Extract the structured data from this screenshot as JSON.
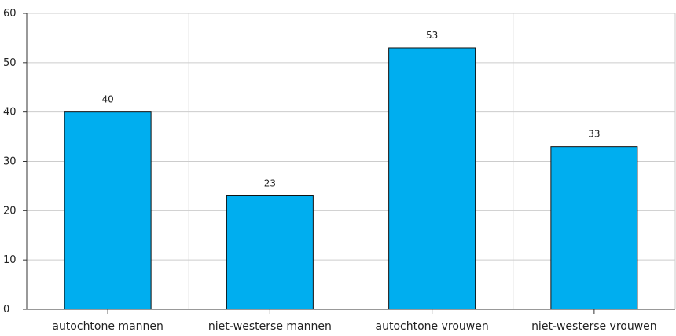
{
  "chart_data": {
    "type": "bar",
    "categories": [
      "autochtone mannen",
      "niet-westerse mannen",
      "autochtone vrouwen",
      "niet-westerse vrouwen"
    ],
    "values": [
      40,
      23,
      53,
      33
    ],
    "data_labels": [
      "40",
      "23",
      "53",
      "33"
    ],
    "yticks": [
      0,
      10,
      20,
      30,
      40,
      50,
      60
    ],
    "ylim": [
      0,
      60
    ],
    "grid": true,
    "legend": "none",
    "title": "",
    "xlabel": "",
    "ylabel": "",
    "colors": {
      "bar": "#00aeef",
      "bar_border": "#111111",
      "grid": "#cccccc",
      "axis": "#333333"
    }
  }
}
